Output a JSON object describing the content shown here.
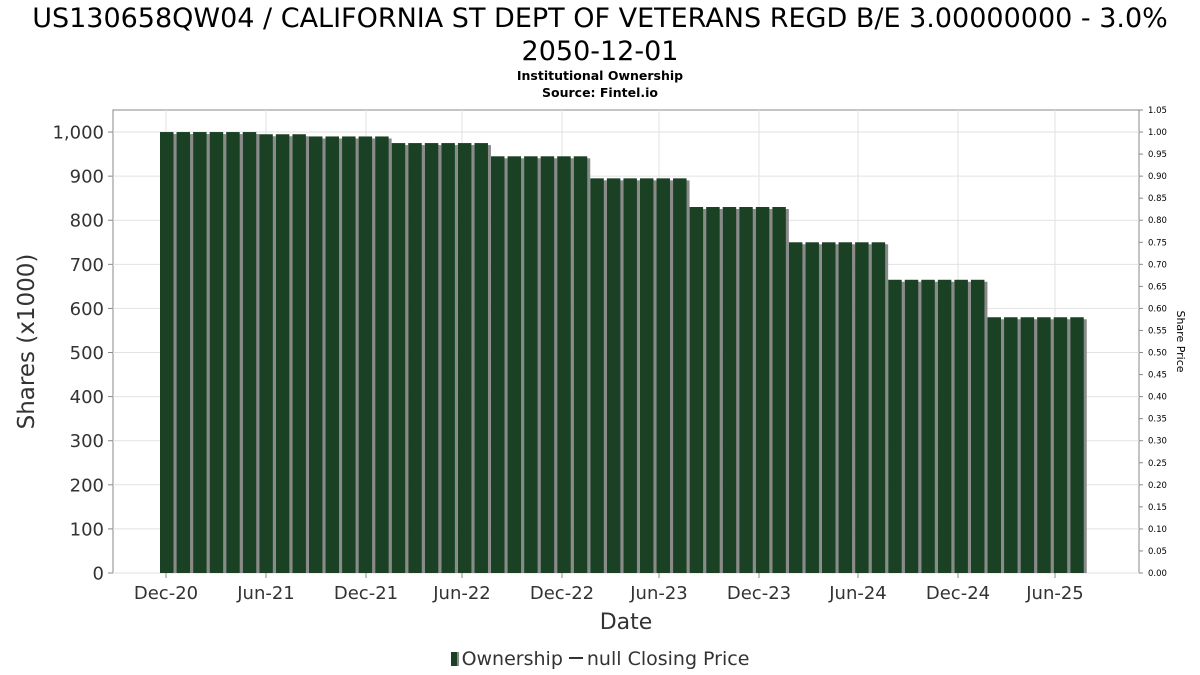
{
  "title_line1": "US130658QW04 / CALIFORNIA ST DEPT OF VETERANS REGD B/E 3.00000000 - 3.0%",
  "title_line2": "2050-12-01",
  "subtitle": "Institutional Ownership",
  "source": "Source: Fintel.io",
  "legend": {
    "ownership_label": "Ownership",
    "price_label": "null Closing Price"
  },
  "colors": {
    "bar": "#1a4124",
    "bar_shadow": "#8a8a8a",
    "grid": "#e2e2e2",
    "axis_text": "#333333"
  },
  "chart_data": {
    "type": "bar",
    "xlabel": "Date",
    "ylabel": "Shares (x1000)",
    "y2label": "Share Price",
    "ylim": [
      0,
      1050
    ],
    "y2lim": [
      0,
      1.05
    ],
    "grid": true,
    "legend_position": "bottom",
    "yticks": [
      "0",
      "100",
      "200",
      "300",
      "400",
      "500",
      "600",
      "700",
      "800",
      "900",
      "1,000"
    ],
    "y2ticks": [
      "0.00",
      "0.05",
      "0.10",
      "0.15",
      "0.20",
      "0.25",
      "0.30",
      "0.35",
      "0.40",
      "0.45",
      "0.50",
      "0.55",
      "0.60",
      "0.65",
      "0.70",
      "0.75",
      "0.80",
      "0.85",
      "0.90",
      "0.95",
      "1.00",
      "1.05"
    ],
    "xticks": [
      "Dec-20",
      "Jun-21",
      "Dec-21",
      "Jun-22",
      "Dec-22",
      "Jun-23",
      "Dec-23",
      "Jun-24",
      "Dec-24",
      "Jun-25"
    ],
    "series": [
      {
        "name": "Ownership",
        "values": [
          1000,
          1000,
          1000,
          1000,
          1000,
          1000,
          995,
          995,
          995,
          990,
          990,
          990,
          990,
          990,
          975,
          975,
          975,
          975,
          975,
          975,
          945,
          945,
          945,
          945,
          945,
          945,
          895,
          895,
          895,
          895,
          895,
          895,
          830,
          830,
          830,
          830,
          830,
          830,
          750,
          750,
          750,
          750,
          750,
          750,
          665,
          665,
          665,
          665,
          665,
          665,
          580,
          580,
          580,
          580,
          580,
          580
        ]
      }
    ]
  }
}
